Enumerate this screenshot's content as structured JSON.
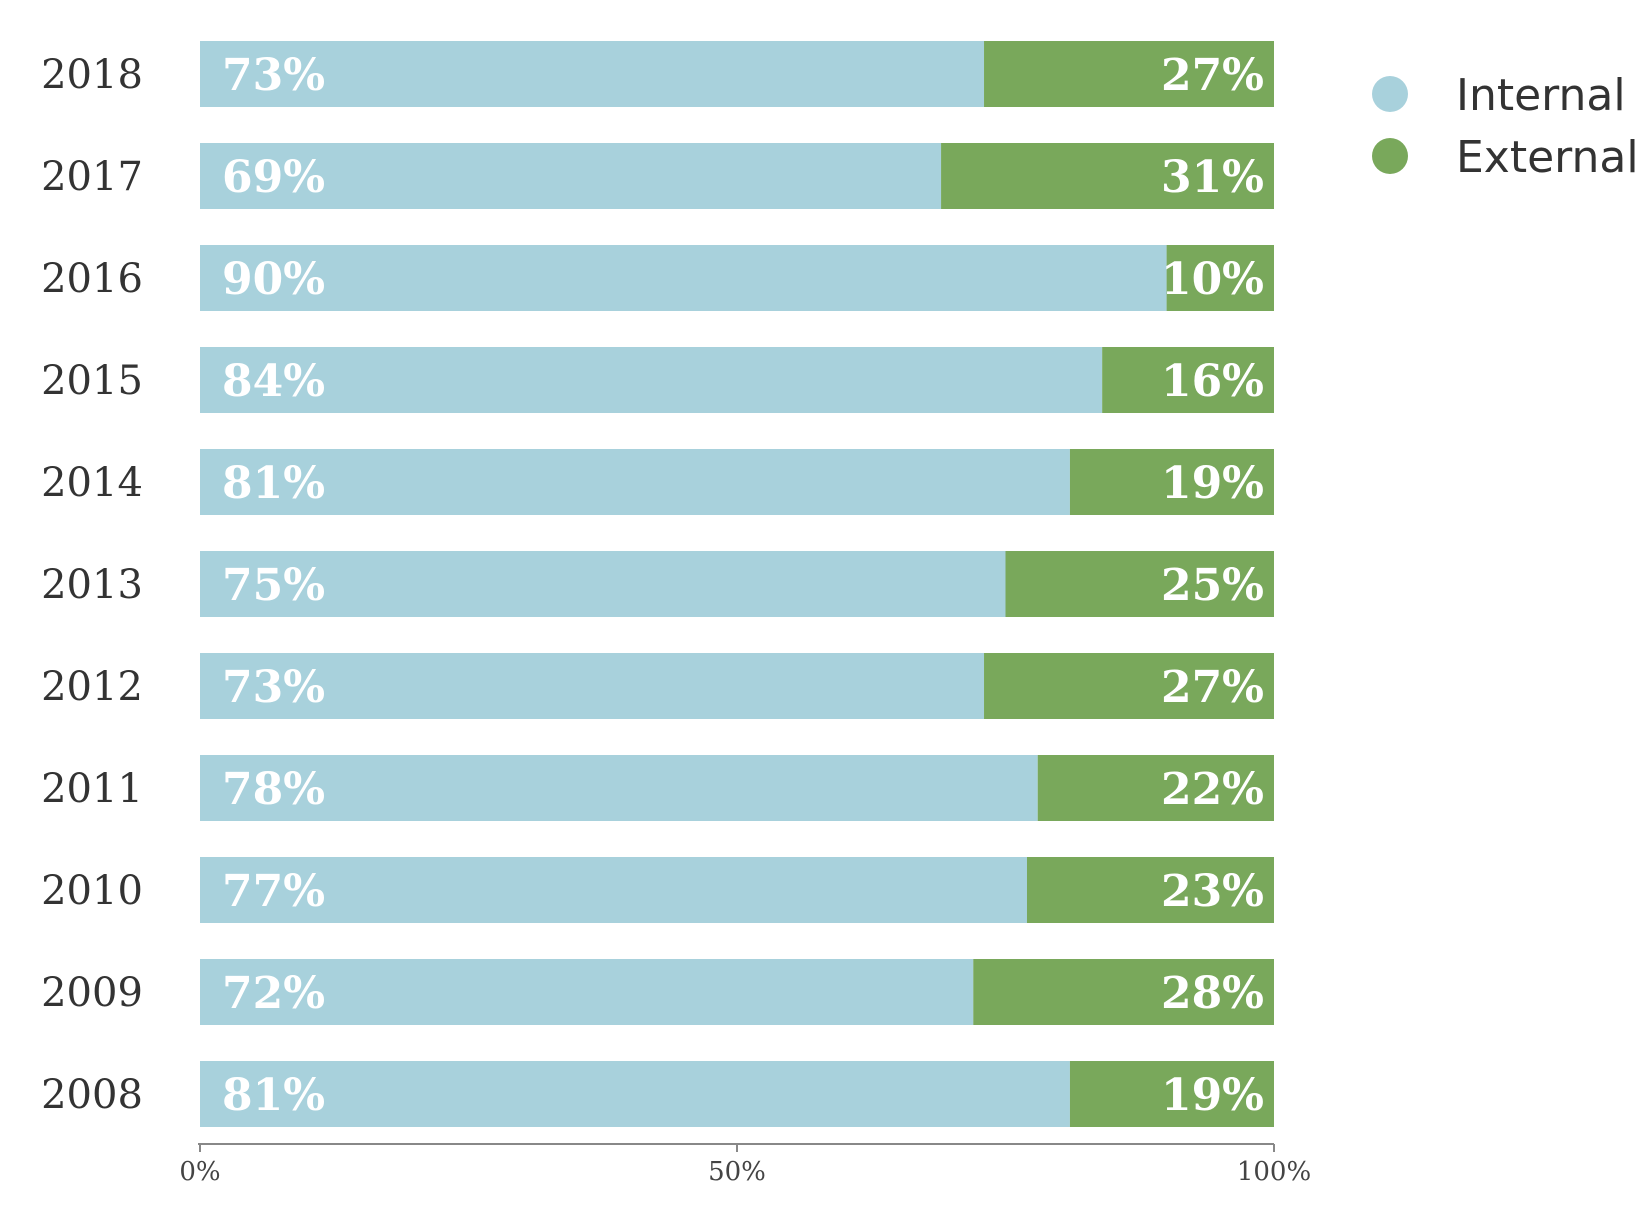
{
  "colors": {
    "internal": "#a8d1dc",
    "external": "#79a85b",
    "axis": "#888888"
  },
  "chart_data": {
    "type": "bar",
    "orientation": "horizontal",
    "stacked": true,
    "categories": [
      "2018",
      "2017",
      "2016",
      "2015",
      "2014",
      "2013",
      "2012",
      "2011",
      "2010",
      "2009",
      "2008"
    ],
    "series": [
      {
        "name": "Internal",
        "values": [
          73,
          69,
          90,
          84,
          81,
          75,
          73,
          78,
          77,
          72,
          81
        ],
        "labels": [
          "73%",
          "69%",
          "90%",
          "84%",
          "81%",
          "75%",
          "73%",
          "78%",
          "77%",
          "72%",
          "81%"
        ]
      },
      {
        "name": "External",
        "values": [
          27,
          31,
          10,
          16,
          19,
          25,
          27,
          22,
          23,
          28,
          19
        ],
        "labels": [
          "27%",
          "31%",
          "10%",
          "16%",
          "19%",
          "25%",
          "27%",
          "22%",
          "23%",
          "28%",
          "19%"
        ]
      }
    ],
    "xlim": [
      0,
      100
    ],
    "x_ticks": [
      0,
      50,
      100
    ],
    "x_tick_labels": [
      "0%",
      "50%",
      "100%"
    ],
    "grid": false,
    "legend": "top-right"
  }
}
